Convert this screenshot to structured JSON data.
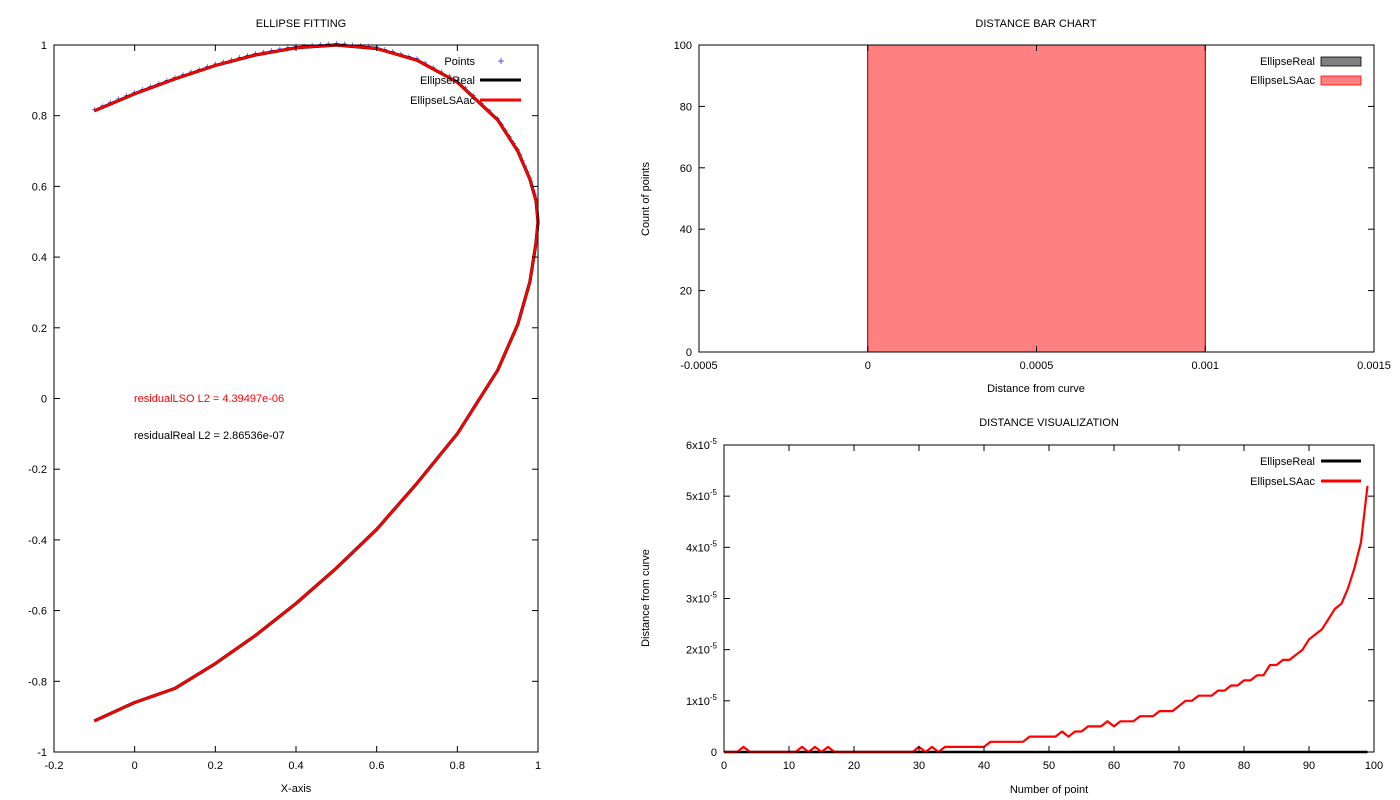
{
  "chart_data": [
    {
      "id": "fit",
      "type": "line",
      "title": "ELLIPSE FITTING",
      "xlabel": "X-axis",
      "ylabel": "",
      "xlim": [
        -0.2,
        1
      ],
      "ylim": [
        -1,
        1
      ],
      "xticks": [
        -0.2,
        0,
        0.2,
        0.4,
        0.6,
        0.8,
        1
      ],
      "yticks": [
        -1,
        -0.8,
        -0.6,
        -0.4,
        -0.2,
        0,
        0.2,
        0.4,
        0.6,
        0.8,
        1
      ],
      "xtick_labels": [
        "-0.2",
        "0",
        "0.2",
        "0.4",
        "0.6",
        "0.8",
        "1"
      ],
      "ytick_labels": [
        "-1",
        "-0.8",
        "-0.6",
        "-0.4",
        "-0.2",
        "0",
        "0.2",
        "0.4",
        "0.6",
        "0.8",
        "1"
      ],
      "legend_position": "top-right",
      "legend": [
        {
          "name": "Points",
          "style": "marker",
          "color": "#3333ff"
        },
        {
          "name": "EllipseReal",
          "style": "line",
          "color": "#000000"
        },
        {
          "name": "EllipseLSAac",
          "style": "line",
          "color": "#ff0000"
        }
      ],
      "curve_points": [
        [
          -0.1,
          0.814
        ],
        [
          0.0,
          0.862
        ],
        [
          0.1,
          0.904
        ],
        [
          0.2,
          0.942
        ],
        [
          0.3,
          0.972
        ],
        [
          0.4,
          0.992
        ],
        [
          0.5,
          1.0
        ],
        [
          0.6,
          0.99
        ],
        [
          0.7,
          0.957
        ],
        [
          0.8,
          0.895
        ],
        [
          0.9,
          0.788
        ],
        [
          0.95,
          0.7
        ],
        [
          0.98,
          0.62
        ],
        [
          0.995,
          0.56
        ],
        [
          1.0,
          0.5
        ],
        [
          0.995,
          0.44
        ],
        [
          0.98,
          0.33
        ],
        [
          0.95,
          0.21
        ],
        [
          0.9,
          0.08
        ],
        [
          0.8,
          -0.1
        ],
        [
          0.7,
          -0.24
        ],
        [
          0.6,
          -0.37
        ],
        [
          0.5,
          -0.48
        ],
        [
          0.4,
          -0.58
        ],
        [
          0.3,
          -0.67
        ],
        [
          0.2,
          -0.75
        ],
        [
          0.1,
          -0.82
        ],
        [
          0.0,
          -0.86
        ],
        [
          -0.1,
          -0.912
        ]
      ],
      "annotations": [
        {
          "text": "residualLSO L2 = 4.39497e-06",
          "color": "#ff0000"
        },
        {
          "text": "residualReal L2 = 2.86536e-07",
          "color": "#000000"
        }
      ]
    },
    {
      "id": "bar",
      "type": "bar",
      "title": "DISTANCE BAR CHART",
      "xlabel": "Distance from curve",
      "ylabel": "Count of points",
      "xlim": [
        -0.0005,
        0.0015
      ],
      "ylim": [
        0,
        100
      ],
      "xticks": [
        -0.0005,
        0,
        0.0005,
        0.001,
        0.0015
      ],
      "yticks": [
        0,
        20,
        40,
        60,
        80,
        100
      ],
      "xtick_labels": [
        "-0.0005",
        "0",
        "0.0005",
        "0.001",
        "0.0015"
      ],
      "ytick_labels": [
        "0",
        "20",
        "40",
        "60",
        "80",
        "100"
      ],
      "legend_position": "top-right",
      "series": [
        {
          "name": "EllipseReal",
          "color": "#808080",
          "bars": [
            {
              "x0": 0,
              "x1": 0.001,
              "value": 100
            }
          ]
        },
        {
          "name": "EllipseLSAac",
          "color": "#ff8080",
          "bars": [
            {
              "x0": 0,
              "x1": 0.001,
              "value": 100
            }
          ]
        }
      ]
    },
    {
      "id": "dist",
      "type": "line",
      "title": "DISTANCE VISUALIZATION",
      "xlabel": "Number of point",
      "ylabel": "Distance from curve",
      "xlim": [
        0,
        100
      ],
      "ylim": [
        0,
        6e-05
      ],
      "xticks": [
        0,
        10,
        20,
        30,
        40,
        50,
        60,
        70,
        80,
        90,
        100
      ],
      "yticks": [
        0,
        1e-05,
        2e-05,
        3e-05,
        4e-05,
        5e-05,
        6e-05
      ],
      "xtick_labels": [
        "0",
        "10",
        "20",
        "30",
        "40",
        "50",
        "60",
        "70",
        "80",
        "90",
        "100"
      ],
      "ytick_labels": [
        {
          "base": "0",
          "exp": ""
        },
        {
          "base": "1x10",
          "exp": "-5"
        },
        {
          "base": "2x10",
          "exp": "-5"
        },
        {
          "base": "3x10",
          "exp": "-5"
        },
        {
          "base": "4x10",
          "exp": "-5"
        },
        {
          "base": "5x10",
          "exp": "-5"
        },
        {
          "base": "6x10",
          "exp": "-5"
        }
      ],
      "legend_position": "top-right",
      "series": [
        {
          "name": "EllipseReal",
          "color": "#000000",
          "x": [
            0,
            99
          ],
          "y": [
            0,
            0
          ]
        },
        {
          "name": "EllipseLSAac",
          "color": "#ff0000",
          "x": [
            0,
            2,
            3,
            4,
            11,
            12,
            13,
            14,
            15,
            16,
            17,
            29,
            30,
            31,
            32,
            33,
            34,
            35,
            40,
            41,
            42,
            46,
            47,
            51,
            52,
            53,
            54,
            55,
            56,
            57,
            58,
            59,
            60,
            61,
            62,
            63,
            64,
            65,
            66,
            67,
            68,
            69,
            70,
            71,
            72,
            73,
            74,
            75,
            76,
            77,
            78,
            79,
            80,
            81,
            82,
            83,
            84,
            85,
            86,
            87,
            88,
            89,
            90,
            91,
            92,
            93,
            94,
            95,
            96,
            97,
            98,
            99
          ],
          "y": [
            0,
            0,
            1e-06,
            0,
            0,
            1e-06,
            0,
            1e-06,
            0,
            1e-06,
            0,
            0,
            1e-06,
            0,
            1e-06,
            0,
            1e-06,
            1e-06,
            1e-06,
            2e-06,
            2e-06,
            2e-06,
            3e-06,
            3e-06,
            4e-06,
            3e-06,
            4e-06,
            4e-06,
            5e-06,
            5e-06,
            5e-06,
            6e-06,
            5e-06,
            6e-06,
            6e-06,
            6e-06,
            7e-06,
            7e-06,
            7e-06,
            8e-06,
            8e-06,
            8e-06,
            9e-06,
            1e-05,
            1e-05,
            1.1e-05,
            1.1e-05,
            1.1e-05,
            1.2e-05,
            1.2e-05,
            1.3e-05,
            1.3e-05,
            1.4e-05,
            1.4e-05,
            1.5e-05,
            1.5e-05,
            1.7e-05,
            1.7e-05,
            1.8e-05,
            1.8e-05,
            1.9e-05,
            2e-05,
            2.2e-05,
            2.3e-05,
            2.4e-05,
            2.6e-05,
            2.8e-05,
            2.9e-05,
            3.2e-05,
            3.6e-05,
            4.1e-05,
            5.2e-05
          ]
        }
      ]
    }
  ]
}
